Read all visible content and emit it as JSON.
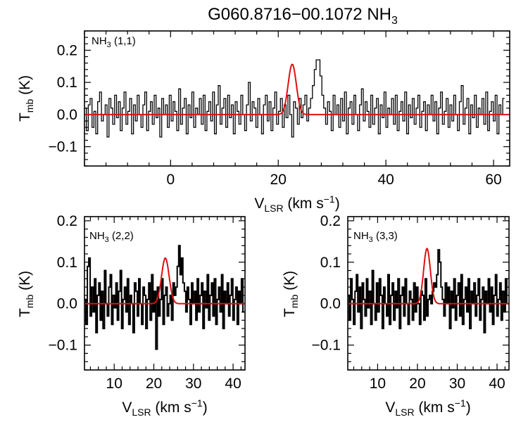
{
  "figure": {
    "title_main": "G060.8716−00.1072 NH",
    "title_sub": "3",
    "ylabel_main": "T",
    "ylabel_sub": "mb",
    "ylabel_unit": " (K)",
    "xlabel_main": "V",
    "xlabel_sub": "LSR",
    "xlabel_unit": " (km s",
    "xlabel_sup": "−1",
    "xlabel_close": ")"
  },
  "chart_data": [
    {
      "type": "line",
      "panel": "NH3 (1,1)",
      "label_main": "NH",
      "label_sub": "3",
      "label_rest": " (1,1)",
      "xlim": [
        -16,
        63
      ],
      "ylim": [
        -0.16,
        0.26
      ],
      "xticks": [
        0,
        20,
        40,
        60
      ],
      "xtick_labels": [
        "0",
        "20",
        "40",
        "60"
      ],
      "yticks": [
        -0.1,
        0.0,
        0.1,
        0.2
      ],
      "ytick_labels": [
        "−0.1",
        "0.0",
        "0.1",
        "0.2"
      ],
      "spectrum": {
        "name": "observed",
        "style": "histogram",
        "color": "#000000",
        "x_start": -16,
        "x_step": 0.35,
        "values": [
          0.02,
          -0.05,
          0.03,
          0.05,
          -0.04,
          0.01,
          -0.06,
          0.04,
          0.07,
          -0.02,
          0.0,
          0.03,
          -0.07,
          0.05,
          0.02,
          -0.03,
          0.06,
          -0.01,
          0.04,
          -0.05,
          0.02,
          0.07,
          -0.03,
          0.01,
          0.05,
          -0.06,
          0.03,
          -0.02,
          0.06,
          0.0,
          -0.04,
          0.03,
          0.07,
          -0.05,
          0.01,
          0.04,
          -0.03,
          0.06,
          -0.01,
          0.02,
          -0.07,
          0.05,
          0.0,
          0.03,
          -0.04,
          0.06,
          -0.02,
          0.04,
          0.01,
          -0.05,
          0.08,
          -0.03,
          0.02,
          0.05,
          -0.06,
          0.03,
          -0.01,
          0.07,
          -0.04,
          0.02,
          0.0,
          0.05,
          -0.03,
          0.06,
          -0.05,
          0.01,
          0.04,
          -0.02,
          0.07,
          -0.06,
          0.03,
          0.09,
          -0.03,
          0.02,
          0.05,
          -0.04,
          0.06,
          -0.01,
          0.03,
          -0.06,
          0.04,
          0.01,
          -0.03,
          0.06,
          0.0,
          -0.05,
          0.03,
          0.1,
          -0.02,
          0.04,
          0.02,
          -0.04,
          0.05,
          0.0,
          -0.06,
          0.03,
          0.06,
          -0.02,
          0.04,
          -0.05,
          0.02,
          0.07,
          -0.03,
          0.01,
          0.05,
          -0.04,
          0.03,
          -0.01,
          0.06,
          0.0,
          -0.07,
          0.04,
          0.02,
          -0.03,
          0.05,
          -0.01,
          0.03,
          0.06,
          -0.02,
          0.02,
          0.05,
          0.09,
          0.14,
          0.17,
          0.17,
          0.12,
          0.06,
          0.02,
          -0.03,
          0.04,
          0.01,
          -0.05,
          0.06,
          0.0,
          0.03,
          -0.04,
          0.05,
          -0.02,
          0.07,
          -0.06,
          0.02,
          0.04,
          -0.03,
          0.06,
          0.0,
          -0.05,
          0.03,
          0.08,
          -0.02,
          0.04,
          0.01,
          -0.04,
          0.06,
          -0.03,
          0.02,
          0.05,
          -0.06,
          0.03,
          -0.01,
          0.07,
          -0.04,
          0.02,
          0.0,
          0.05,
          -0.03,
          0.06,
          -0.05,
          0.01,
          0.04,
          -0.02,
          0.07,
          -0.06,
          0.03,
          -0.01,
          0.05,
          -0.03,
          0.02,
          0.06,
          -0.04,
          0.01,
          0.04,
          -0.05,
          0.03,
          0.0,
          0.06,
          -0.02,
          0.04,
          -0.06,
          0.02,
          0.07,
          -0.03,
          0.01,
          0.05,
          -0.04,
          0.03,
          -0.02,
          0.06,
          0.0,
          -0.05,
          0.04,
          0.09,
          -0.03,
          0.02,
          0.05,
          -0.06,
          0.03,
          -0.01,
          0.06,
          -0.04,
          0.02,
          0.0,
          0.05,
          -0.03,
          0.07,
          -0.05,
          0.01,
          0.04,
          -0.02,
          0.06,
          -0.06,
          0.03,
          0.0,
          0.05
        ]
      },
      "fit": {
        "name": "gaussian fit",
        "style": "line",
        "color": "#e01010",
        "amplitude": 0.157,
        "center": 22.6,
        "sigma": 0.75
      }
    },
    {
      "type": "line",
      "panel": "NH3 (2,2)",
      "label_main": "NH",
      "label_sub": "3",
      "label_rest": " (2,2)",
      "xlim": [
        2.5,
        43
      ],
      "ylim": [
        -0.16,
        0.21
      ],
      "xticks": [
        10,
        20,
        30,
        40
      ],
      "xtick_labels": [
        "10",
        "20",
        "30",
        "40"
      ],
      "yticks": [
        -0.1,
        0.0,
        0.1,
        0.2
      ],
      "ytick_labels": [
        "−0.1",
        "0.0",
        "0.1",
        "0.2"
      ],
      "spectrum": {
        "name": "observed",
        "style": "histogram",
        "color": "#000000",
        "x_start": 2.5,
        "x_step": 0.36,
        "values": [
          0.01,
          -0.05,
          0.09,
          0.11,
          -0.03,
          0.04,
          -0.02,
          0.06,
          -0.07,
          0.02,
          0.05,
          -0.04,
          0.03,
          -0.06,
          0.08,
          0.0,
          -0.03,
          0.04,
          0.07,
          -0.05,
          0.02,
          -0.01,
          0.05,
          -0.04,
          0.03,
          0.08,
          -0.06,
          0.01,
          0.04,
          -0.02,
          0.06,
          -0.05,
          0.02,
          0.0,
          -0.07,
          0.05,
          0.03,
          -0.03,
          0.06,
          0.0,
          -0.05,
          0.04,
          0.02,
          -0.06,
          0.01,
          0.05,
          -0.04,
          0.07,
          -0.02,
          0.03,
          -0.11,
          0.04,
          -0.03,
          0.01,
          0.06,
          -0.05,
          0.02,
          0.04,
          -0.03,
          0.0,
          0.02,
          -0.04,
          0.05,
          0.02,
          0.04,
          0.09,
          0.14,
          0.07,
          0.11,
          0.05,
          0.03,
          -0.02,
          0.04,
          0.01,
          -0.05,
          0.05,
          0.0,
          0.03,
          -0.04,
          0.06,
          -0.02,
          0.02,
          0.05,
          -0.06,
          0.03,
          -0.01,
          0.07,
          -0.04,
          0.02,
          0.05,
          -0.03,
          0.06,
          -0.05,
          0.01,
          0.04,
          -0.02,
          0.07,
          -0.06,
          0.03,
          0.0,
          0.05,
          -0.03,
          0.02,
          0.06,
          -0.04,
          0.01,
          0.04,
          -0.05,
          0.03,
          0.0,
          0.06,
          -0.02
        ]
      },
      "fit": {
        "name": "gaussian fit",
        "style": "line",
        "color": "#e01010",
        "amplitude": 0.11,
        "center": 22.9,
        "sigma": 0.95
      }
    },
    {
      "type": "line",
      "panel": "NH3 (3,3)",
      "label_main": "NH",
      "label_sub": "3",
      "label_rest": " (3,3)",
      "xlim": [
        2.5,
        43
      ],
      "ylim": [
        -0.16,
        0.21
      ],
      "xticks": [
        10,
        20,
        30,
        40
      ],
      "xtick_labels": [
        "10",
        "20",
        "30",
        "40"
      ],
      "yticks": [
        -0.1,
        0.0,
        0.1,
        0.2
      ],
      "ytick_labels": [
        "−0.1",
        "0.0",
        "0.1",
        "0.2"
      ],
      "spectrum": {
        "name": "observed",
        "style": "histogram",
        "color": "#000000",
        "x_start": 2.5,
        "x_step": 0.36,
        "values": [
          0.02,
          -0.04,
          0.06,
          0.01,
          -0.05,
          0.03,
          0.07,
          -0.02,
          0.04,
          -0.06,
          0.05,
          0.01,
          -0.03,
          0.06,
          -0.01,
          0.03,
          -0.05,
          0.08,
          0.0,
          -0.04,
          0.05,
          -0.02,
          0.06,
          0.02,
          -0.06,
          0.04,
          0.0,
          -0.03,
          0.07,
          -0.05,
          0.02,
          0.05,
          -0.04,
          0.03,
          -0.01,
          0.06,
          -0.06,
          0.02,
          0.04,
          -0.03,
          0.06,
          0.0,
          -0.05,
          0.03,
          0.01,
          -0.04,
          0.05,
          -0.02,
          0.04,
          0.0,
          -0.05,
          0.03,
          0.02,
          -0.04,
          0.06,
          -0.03,
          0.01,
          0.02,
          0.0,
          0.03,
          0.05,
          0.04,
          0.07,
          0.13,
          0.1,
          0.04,
          0.01,
          -0.03,
          0.05,
          0.0,
          0.04,
          -0.06,
          0.03,
          -0.01,
          0.06,
          -0.04,
          0.02,
          0.05,
          -0.03,
          0.07,
          -0.05,
          0.01,
          0.04,
          -0.02,
          0.06,
          -0.06,
          0.03,
          0.0,
          0.05,
          -0.03,
          0.02,
          0.06,
          -0.04,
          0.01,
          0.04,
          -0.07,
          0.03,
          0.0,
          0.06,
          -0.02,
          0.04,
          -0.05,
          0.02,
          0.07,
          -0.03,
          0.01,
          0.05,
          -0.04,
          0.03,
          -0.02,
          0.06,
          0.0
        ]
      },
      "fit": {
        "name": "gaussian fit",
        "style": "line",
        "color": "#e01010",
        "amplitude": 0.133,
        "center": 22.4,
        "sigma": 0.85
      }
    }
  ]
}
